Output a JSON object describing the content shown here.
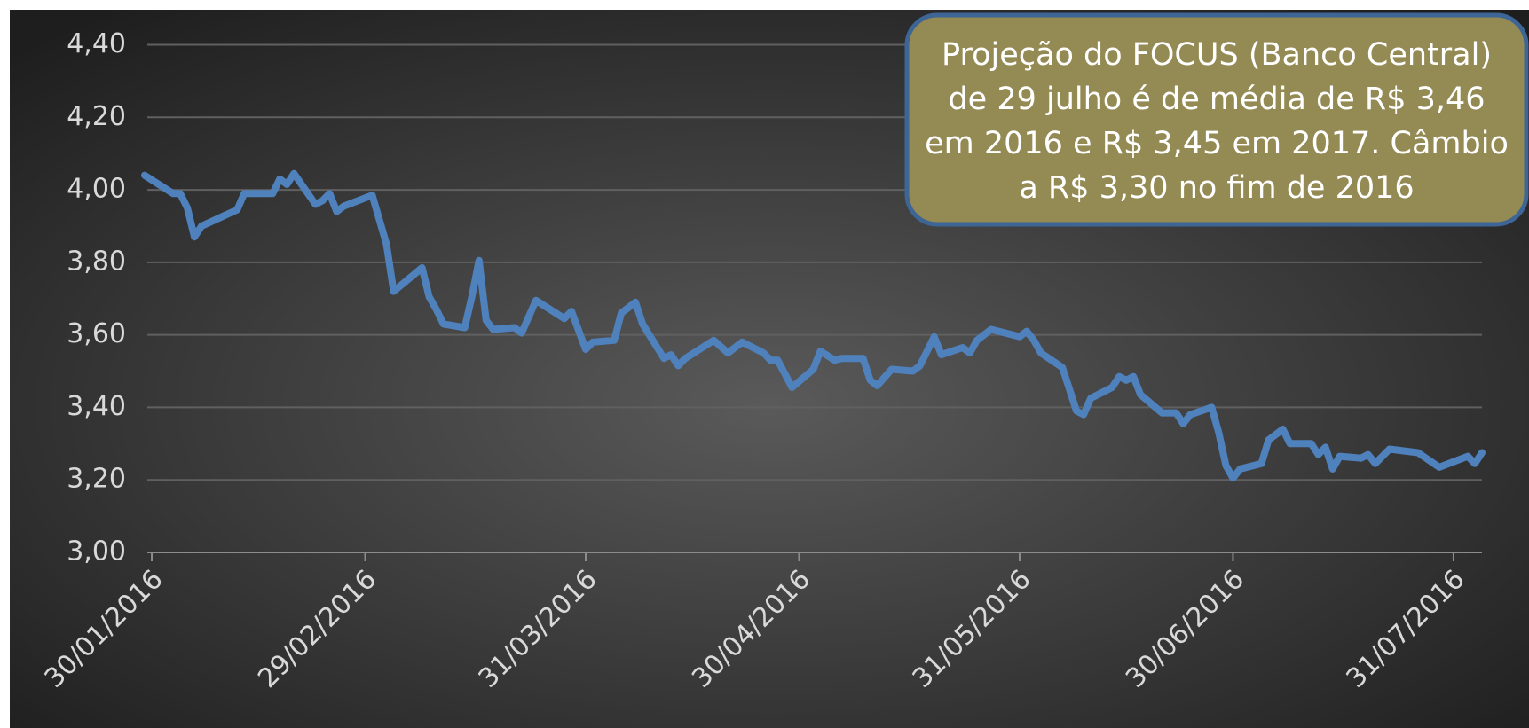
{
  "chart_data": {
    "type": "line",
    "annotation": [
      "Projeção do FOCUS (Banco Central)",
      "de 29 julho é de média de R$ 3,46",
      "em 2016 e R$ 3,45 em 2017. Câmbio",
      "a R$ 3,30 no fim de 2016"
    ],
    "color": "#4f81bd",
    "grid": true,
    "x": [
      "2016-01-29",
      "2016-02-02",
      "2016-02-03",
      "2016-02-04",
      "2016-02-05",
      "2016-02-06",
      "2016-02-11",
      "2016-02-12",
      "2016-02-16",
      "2016-02-17",
      "2016-02-18",
      "2016-02-19",
      "2016-02-22",
      "2016-02-23",
      "2016-02-24",
      "2016-02-25",
      "2016-02-26",
      "2016-03-01",
      "2016-03-03",
      "2016-03-04",
      "2016-03-08",
      "2016-03-09",
      "2016-03-10",
      "2016-03-11",
      "2016-03-14",
      "2016-03-15",
      "2016-03-16",
      "2016-03-17",
      "2016-03-18",
      "2016-03-21",
      "2016-03-22",
      "2016-03-24",
      "2016-03-28",
      "2016-03-29",
      "2016-03-31",
      "2016-04-01",
      "2016-04-04",
      "2016-04-05",
      "2016-04-07",
      "2016-04-08",
      "2016-04-11",
      "2016-04-12",
      "2016-04-13",
      "2016-04-14",
      "2016-04-18",
      "2016-04-20",
      "2016-04-22",
      "2016-04-25",
      "2016-04-26",
      "2016-04-27",
      "2016-04-29",
      "2016-05-02",
      "2016-05-03",
      "2016-05-05",
      "2016-05-06",
      "2016-05-09",
      "2016-05-10",
      "2016-05-11",
      "2016-05-13",
      "2016-05-16",
      "2016-05-17",
      "2016-05-19",
      "2016-05-20",
      "2016-05-23",
      "2016-05-24",
      "2016-05-25",
      "2016-05-27",
      "2016-05-31",
      "2016-06-01",
      "2016-06-02",
      "2016-06-03",
      "2016-06-06",
      "2016-06-08",
      "2016-06-09",
      "2016-06-10",
      "2016-06-13",
      "2016-06-14",
      "2016-06-15",
      "2016-06-16",
      "2016-06-17",
      "2016-06-20",
      "2016-06-22",
      "2016-06-23",
      "2016-06-24",
      "2016-06-27",
      "2016-06-28",
      "2016-06-29",
      "2016-06-30",
      "2016-07-01",
      "2016-07-04",
      "2016-07-05",
      "2016-07-07",
      "2016-07-08",
      "2016-07-11",
      "2016-07-12",
      "2016-07-13",
      "2016-07-14",
      "2016-07-15",
      "2016-07-18",
      "2016-07-19",
      "2016-07-20",
      "2016-07-22",
      "2016-07-26",
      "2016-07-29",
      "2016-08-02",
      "2016-08-03",
      "2016-08-04"
    ],
    "values": [
      4.04,
      3.99,
      3.99,
      3.95,
      3.87,
      3.9,
      3.945,
      3.99,
      3.99,
      4.03,
      4.015,
      4.045,
      3.96,
      3.97,
      3.99,
      3.94,
      3.955,
      3.985,
      3.85,
      3.72,
      3.785,
      3.705,
      3.67,
      3.63,
      3.62,
      3.705,
      3.805,
      3.64,
      3.615,
      3.62,
      3.605,
      3.695,
      3.645,
      3.665,
      3.56,
      3.58,
      3.585,
      3.66,
      3.69,
      3.63,
      3.535,
      3.545,
      3.515,
      3.535,
      3.585,
      3.55,
      3.58,
      3.55,
      3.53,
      3.53,
      3.455,
      3.505,
      3.555,
      3.53,
      3.535,
      3.535,
      3.475,
      3.46,
      3.505,
      3.5,
      3.515,
      3.595,
      3.545,
      3.565,
      3.55,
      3.585,
      3.615,
      3.595,
      3.61,
      3.585,
      3.55,
      3.51,
      3.39,
      3.38,
      3.425,
      3.455,
      3.485,
      3.475,
      3.485,
      3.435,
      3.385,
      3.385,
      3.355,
      3.38,
      3.4,
      3.33,
      3.24,
      3.205,
      3.23,
      3.245,
      3.31,
      3.34,
      3.3,
      3.3,
      3.27,
      3.29,
      3.23,
      3.265,
      3.26,
      3.27,
      3.245,
      3.285,
      3.275,
      3.235,
      3.265,
      3.245,
      3.275
    ],
    "xlim": [
      "2016-01-29",
      "2016-08-04"
    ],
    "xticks": [
      {
        "value": "2016-01-30",
        "label": "30/01/2016"
      },
      {
        "value": "2016-02-29",
        "label": "29/02/2016"
      },
      {
        "value": "2016-03-31",
        "label": "31/03/2016"
      },
      {
        "value": "2016-04-30",
        "label": "30/04/2016"
      },
      {
        "value": "2016-05-31",
        "label": "31/05/2016"
      },
      {
        "value": "2016-06-30",
        "label": "30/06/2016"
      },
      {
        "value": "2016-07-31",
        "label": "31/07/2016"
      }
    ],
    "ylim": [
      3.0,
      4.4
    ],
    "yticks": [
      {
        "value": 3.0,
        "label": "3,00"
      },
      {
        "value": 3.2,
        "label": "3,20"
      },
      {
        "value": 3.4,
        "label": "3,40"
      },
      {
        "value": 3.6,
        "label": "3,60"
      },
      {
        "value": 3.8,
        "label": "3,80"
      },
      {
        "value": 4.0,
        "label": "4,00"
      },
      {
        "value": 4.2,
        "label": "4,20"
      },
      {
        "value": 4.4,
        "label": "4,40"
      }
    ]
  }
}
